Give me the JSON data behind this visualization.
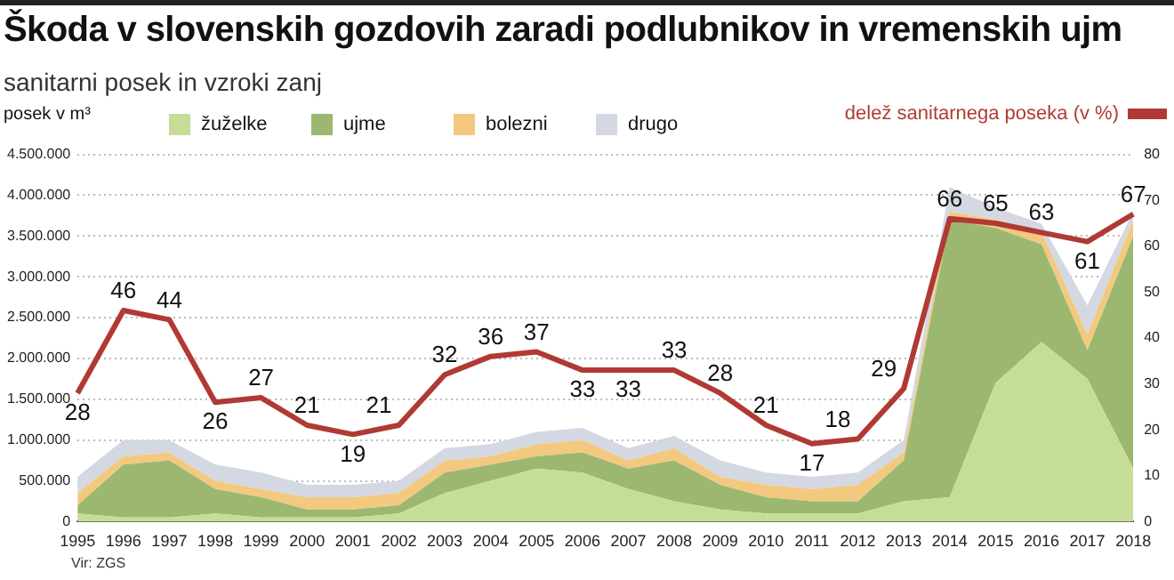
{
  "chart_data": {
    "type": "area",
    "title": "Škoda v slovenskih gozdovih zaradi podlubnikov in vremenskih ujm",
    "subtitle": "sanitarni posek in vzroki zanj",
    "ylabel": "posek v m³",
    "annotations": [
      "Vir: ZGS"
    ],
    "categories": [
      "1995",
      "1996",
      "1997",
      "1998",
      "1999",
      "2000",
      "2001",
      "2002",
      "2003",
      "2004",
      "2005",
      "2006",
      "2007",
      "2008",
      "2009",
      "2010",
      "2011",
      "2012",
      "2013",
      "2014",
      "2015",
      "2016",
      "2017",
      "2018"
    ],
    "stacked": true,
    "legend": "top",
    "grid": "y",
    "ylim": [
      0,
      4500000
    ],
    "yticks": [
      0,
      {
        "value": 500000,
        "label": "500.000"
      },
      {
        "value": 1000000,
        "label": "1.000.000"
      },
      {
        "value": 1500000,
        "label": "1.500.000"
      },
      {
        "value": 2000000,
        "label": "2.000.000"
      },
      {
        "value": 2500000,
        "label": "2.500.000"
      },
      {
        "value": 3000000,
        "label": "3.000.000"
      },
      {
        "value": 3500000,
        "label": "3.500.000"
      },
      {
        "value": 4000000,
        "label": "4.000.000"
      },
      {
        "value": 4500000,
        "label": "4.500.000"
      }
    ],
    "y2lim": [
      0,
      80
    ],
    "y2ticks": [
      0,
      10,
      20,
      30,
      40,
      50,
      60,
      70,
      80
    ],
    "series": [
      {
        "name": "žuželke",
        "color": "#c5dd96",
        "values": [
          100000,
          50000,
          50000,
          100000,
          50000,
          50000,
          50000,
          100000,
          350000,
          500000,
          650000,
          600000,
          400000,
          250000,
          150000,
          100000,
          100000,
          100000,
          250000,
          300000,
          1700000,
          2200000,
          1750000,
          650000
        ]
      },
      {
        "name": "ujme",
        "color": "#9cb870",
        "values": [
          100000,
          650000,
          700000,
          300000,
          250000,
          100000,
          100000,
          100000,
          250000,
          200000,
          150000,
          250000,
          250000,
          500000,
          300000,
          200000,
          150000,
          150000,
          500000,
          3400000,
          1900000,
          1200000,
          350000,
          2850000
        ]
      },
      {
        "name": "bolezni",
        "color": "#f2c97e",
        "values": [
          150000,
          100000,
          100000,
          100000,
          100000,
          150000,
          150000,
          150000,
          150000,
          100000,
          150000,
          150000,
          100000,
          150000,
          100000,
          150000,
          150000,
          200000,
          100000,
          100000,
          100000,
          150000,
          200000,
          200000
        ]
      },
      {
        "name": "drugo",
        "color": "#d3d8e2",
        "values": [
          200000,
          200000,
          150000,
          200000,
          200000,
          150000,
          150000,
          150000,
          150000,
          150000,
          150000,
          150000,
          150000,
          150000,
          200000,
          150000,
          150000,
          150000,
          150000,
          300000,
          150000,
          100000,
          350000,
          100000
        ]
      },
      {
        "name": "delež sanitarnega poseka (v %)",
        "type": "line",
        "axis": "y2",
        "color": "#b03a33",
        "data_labels": true,
        "values": [
          28,
          46,
          44,
          26,
          27,
          21,
          19,
          21,
          32,
          36,
          37,
          33,
          33,
          33,
          28,
          21,
          17,
          18,
          29,
          66,
          65,
          63,
          61,
          67
        ]
      }
    ]
  }
}
